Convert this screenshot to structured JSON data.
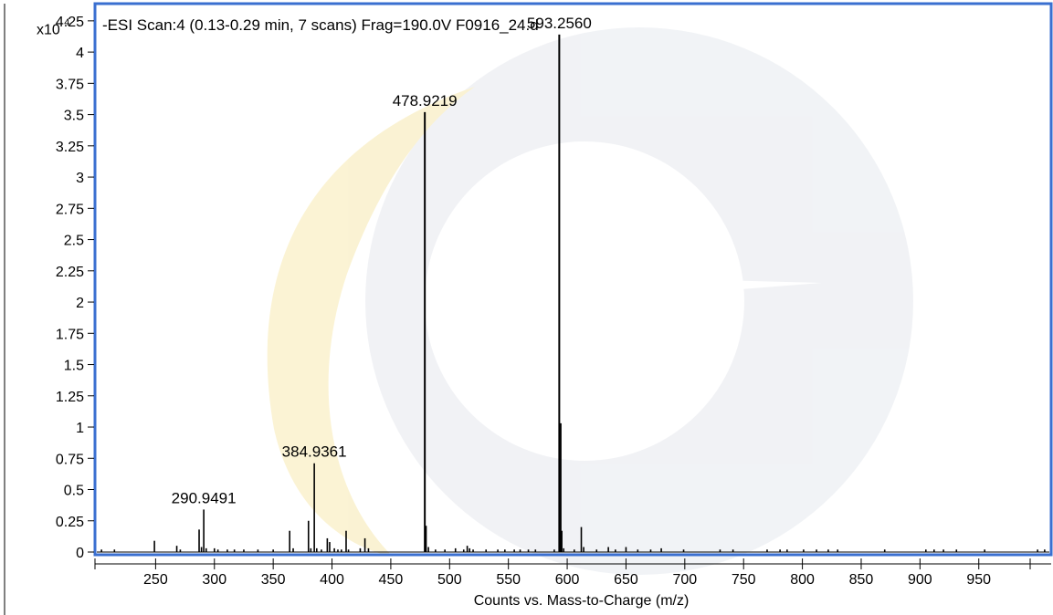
{
  "chart_data": {
    "type": "bar",
    "title": "-ESI Scan:4 (0.13-0.29 min, 7 scans) Frag=190.0V F0916_24.d",
    "y_scale_label": "x10",
    "y_scale_exponent": "4",
    "xlabel": "Counts vs. Mass-to-Charge (m/z)",
    "ylabel": "",
    "xlim": [
      200,
      1010
    ],
    "ylim": [
      0,
      4.3
    ],
    "x_ticks": [
      250,
      300,
      350,
      400,
      450,
      500,
      550,
      600,
      650,
      700,
      750,
      800,
      850,
      900,
      950
    ],
    "y_ticks": [
      "0",
      "0.25",
      "0.5",
      "0.75",
      "1",
      "1.25",
      "1.5",
      "1.75",
      "2",
      "2.25",
      "2.5",
      "2.75",
      "3",
      "3.25",
      "3.5",
      "3.75",
      "4",
      "4.25"
    ],
    "grid": false,
    "peaks": [
      {
        "mz": 204,
        "intensity": 0.02
      },
      {
        "mz": 215,
        "intensity": 0.02
      },
      {
        "mz": 249,
        "intensity": 0.09
      },
      {
        "mz": 268,
        "intensity": 0.05
      },
      {
        "mz": 271,
        "intensity": 0.02
      },
      {
        "mz": 287,
        "intensity": 0.18
      },
      {
        "mz": 289,
        "intensity": 0.04
      },
      {
        "mz": 290.9491,
        "intensity": 0.34,
        "label": "290.9491"
      },
      {
        "mz": 293,
        "intensity": 0.03
      },
      {
        "mz": 300,
        "intensity": 0.03
      },
      {
        "mz": 303,
        "intensity": 0.02
      },
      {
        "mz": 311,
        "intensity": 0.02
      },
      {
        "mz": 317,
        "intensity": 0.02
      },
      {
        "mz": 325,
        "intensity": 0.02
      },
      {
        "mz": 337,
        "intensity": 0.02
      },
      {
        "mz": 350,
        "intensity": 0.02
      },
      {
        "mz": 364,
        "intensity": 0.17
      },
      {
        "mz": 367,
        "intensity": 0.03
      },
      {
        "mz": 380,
        "intensity": 0.25
      },
      {
        "mz": 382,
        "intensity": 0.03
      },
      {
        "mz": 384.9361,
        "intensity": 0.71,
        "label": "384.9361"
      },
      {
        "mz": 387,
        "intensity": 0.03
      },
      {
        "mz": 391,
        "intensity": 0.02
      },
      {
        "mz": 396,
        "intensity": 0.11
      },
      {
        "mz": 398,
        "intensity": 0.08
      },
      {
        "mz": 402,
        "intensity": 0.03
      },
      {
        "mz": 405,
        "intensity": 0.02
      },
      {
        "mz": 408,
        "intensity": 0.02
      },
      {
        "mz": 412,
        "intensity": 0.17
      },
      {
        "mz": 414,
        "intensity": 0.02
      },
      {
        "mz": 424,
        "intensity": 0.03
      },
      {
        "mz": 428,
        "intensity": 0.11
      },
      {
        "mz": 431,
        "intensity": 0.03
      },
      {
        "mz": 478.9219,
        "intensity": 3.52,
        "label": "478.9219"
      },
      {
        "mz": 480,
        "intensity": 0.21
      },
      {
        "mz": 482,
        "intensity": 0.04
      },
      {
        "mz": 488,
        "intensity": 0.02
      },
      {
        "mz": 496,
        "intensity": 0.02
      },
      {
        "mz": 505,
        "intensity": 0.03
      },
      {
        "mz": 512,
        "intensity": 0.02
      },
      {
        "mz": 515,
        "intensity": 0.05
      },
      {
        "mz": 517,
        "intensity": 0.03
      },
      {
        "mz": 520,
        "intensity": 0.02
      },
      {
        "mz": 531,
        "intensity": 0.02
      },
      {
        "mz": 541,
        "intensity": 0.02
      },
      {
        "mz": 547,
        "intensity": 0.02
      },
      {
        "mz": 555,
        "intensity": 0.02
      },
      {
        "mz": 560,
        "intensity": 0.02
      },
      {
        "mz": 567,
        "intensity": 0.02
      },
      {
        "mz": 573,
        "intensity": 0.02
      },
      {
        "mz": 589,
        "intensity": 0.02
      },
      {
        "mz": 593.256,
        "intensity": 4.14,
        "label": "593.2560"
      },
      {
        "mz": 594.4,
        "intensity": 1.03
      },
      {
        "mz": 595.4,
        "intensity": 0.17
      },
      {
        "mz": 597,
        "intensity": 0.03
      },
      {
        "mz": 606,
        "intensity": 0.02
      },
      {
        "mz": 612,
        "intensity": 0.2
      },
      {
        "mz": 614,
        "intensity": 0.04
      },
      {
        "mz": 625,
        "intensity": 0.02
      },
      {
        "mz": 635,
        "intensity": 0.04
      },
      {
        "mz": 641,
        "intensity": 0.02
      },
      {
        "mz": 650,
        "intensity": 0.04
      },
      {
        "mz": 660,
        "intensity": 0.02
      },
      {
        "mz": 671,
        "intensity": 0.02
      },
      {
        "mz": 680,
        "intensity": 0.03
      },
      {
        "mz": 699,
        "intensity": 0.02
      },
      {
        "mz": 730,
        "intensity": 0.02
      },
      {
        "mz": 741,
        "intensity": 0.02
      },
      {
        "mz": 770,
        "intensity": 0.02
      },
      {
        "mz": 781,
        "intensity": 0.02
      },
      {
        "mz": 787,
        "intensity": 0.02
      },
      {
        "mz": 801,
        "intensity": 0.02
      },
      {
        "mz": 812,
        "intensity": 0.02
      },
      {
        "mz": 822,
        "intensity": 0.02
      },
      {
        "mz": 830,
        "intensity": 0.02
      },
      {
        "mz": 870,
        "intensity": 0.02
      },
      {
        "mz": 905,
        "intensity": 0.02
      },
      {
        "mz": 912,
        "intensity": 0.02
      },
      {
        "mz": 920,
        "intensity": 0.02
      },
      {
        "mz": 931,
        "intensity": 0.02
      },
      {
        "mz": 955,
        "intensity": 0.02
      },
      {
        "mz": 1000,
        "intensity": 0.02
      },
      {
        "mz": 1006,
        "intensity": 0.02
      }
    ]
  },
  "colors": {
    "frame": "#3a6fd0",
    "peak": "#000000",
    "watermark_gold": "#f7e9b0",
    "watermark_gray": "#e6e9ee"
  }
}
